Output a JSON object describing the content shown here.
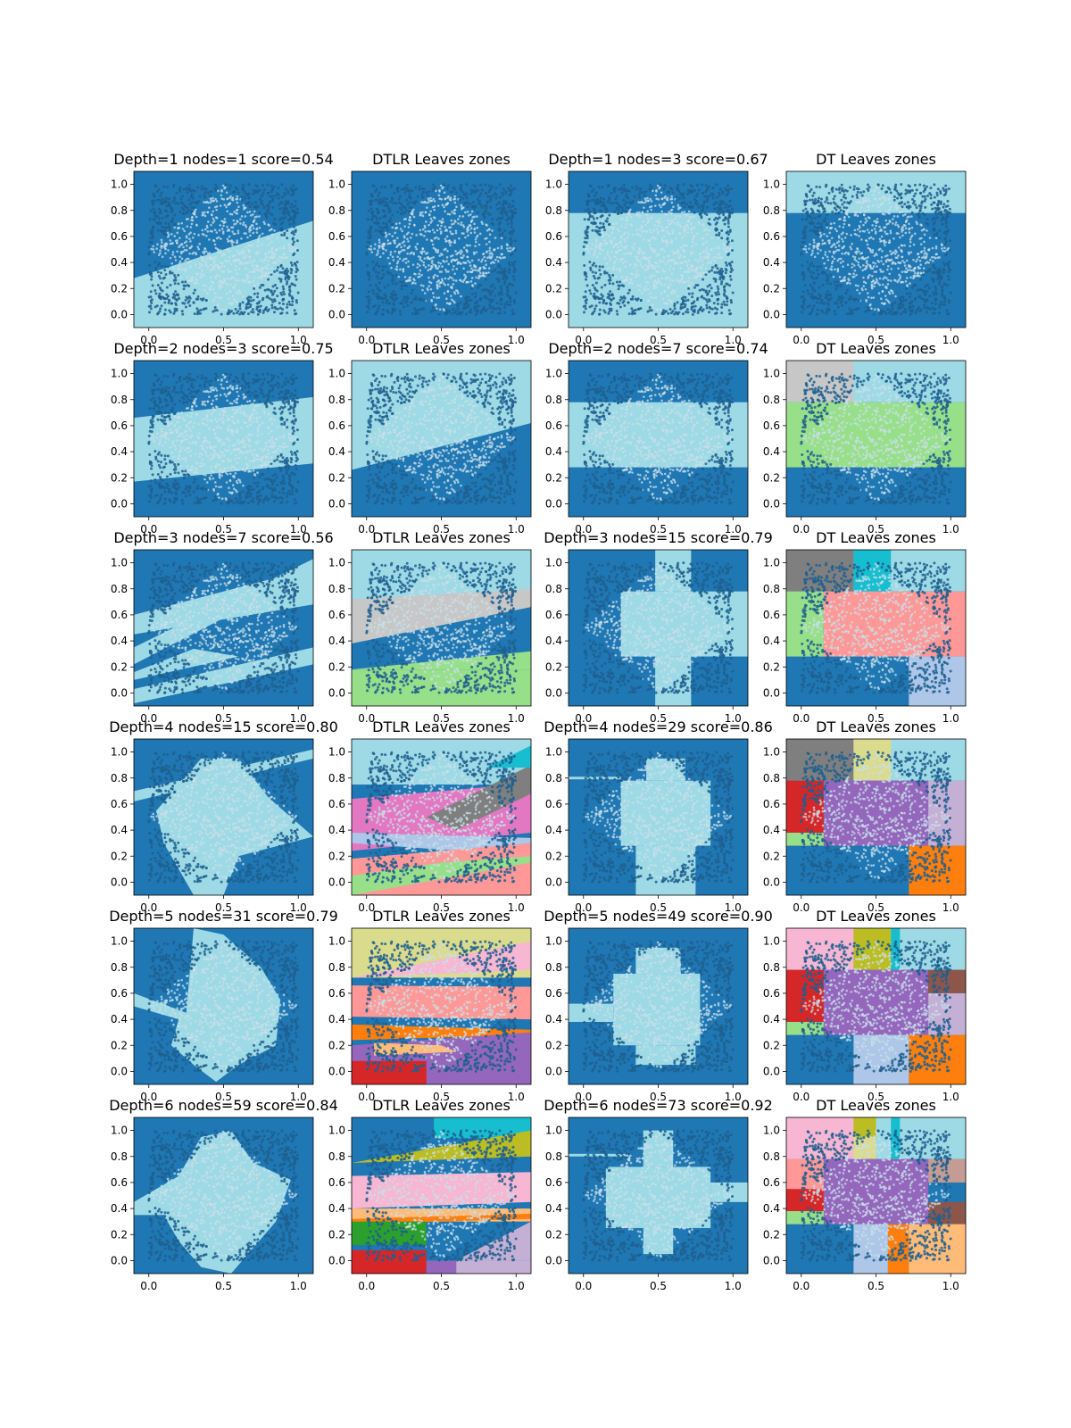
{
  "colors": {
    "dark_blue": "#1f77b4",
    "light_blue": "#9edae5",
    "points": "#1f5f8f",
    "points_light": "#c8dfe8",
    "tab20": [
      "#1f77b4",
      "#aec7e8",
      "#ff7f0e",
      "#ffbb78",
      "#2ca02c",
      "#98df8a",
      "#d62728",
      "#ff9896",
      "#9467bd",
      "#c5b0d5",
      "#8c564b",
      "#c49c94",
      "#e377c2",
      "#f7b6d2",
      "#7f7f7f",
      "#c7c7c7",
      "#bcbd22",
      "#dbdb8d",
      "#17becf",
      "#9edae5"
    ]
  },
  "chart_data": [
    {
      "row": 0,
      "col": 0,
      "type": "scatter",
      "title": "Depth=1 nodes=1 score=0.54",
      "x_ticks": [
        "0.0",
        "0.5",
        "1.0"
      ],
      "y_ticks": [
        "0.0",
        "0.2",
        "0.4",
        "0.6",
        "0.8",
        "1.0"
      ],
      "xlim": [
        -0.1,
        1.1
      ],
      "ylim": [
        -0.1,
        1.1
      ],
      "classes": [
        "light_blue",
        "dark_blue"
      ]
    },
    {
      "row": 0,
      "col": 1,
      "type": "scatter",
      "title": "DTLR Leaves zones",
      "x_ticks": [
        "0.0",
        "0.5",
        "1.0"
      ],
      "y_ticks": [
        "0.0",
        "0.2",
        "0.4",
        "0.6",
        "0.8",
        "1.0"
      ],
      "xlim": [
        -0.1,
        1.1
      ],
      "ylim": [
        -0.1,
        1.1
      ]
    },
    {
      "row": 0,
      "col": 2,
      "type": "scatter",
      "title": "Depth=1 nodes=3 score=0.67",
      "x_ticks": [
        "0.0",
        "0.5",
        "1.0"
      ],
      "y_ticks": [
        "0.0",
        "0.2",
        "0.4",
        "0.6",
        "0.8",
        "1.0"
      ],
      "xlim": [
        -0.1,
        1.1
      ],
      "ylim": [
        -0.1,
        1.1
      ]
    },
    {
      "row": 0,
      "col": 3,
      "type": "scatter",
      "title": "DT Leaves zones",
      "x_ticks": [
        "0.0",
        "0.5",
        "1.0"
      ],
      "y_ticks": [
        "0.0",
        "0.2",
        "0.4",
        "0.6",
        "0.8",
        "1.0"
      ],
      "xlim": [
        -0.1,
        1.1
      ],
      "ylim": [
        -0.1,
        1.1
      ]
    },
    {
      "row": 1,
      "col": 0,
      "type": "scatter",
      "title": "Depth=2 nodes=3 score=0.75",
      "x_ticks": [
        "0.0",
        "0.5",
        "1.0"
      ],
      "y_ticks": [
        "0.0",
        "0.2",
        "0.4",
        "0.6",
        "0.8",
        "1.0"
      ],
      "xlim": [
        -0.1,
        1.1
      ],
      "ylim": [
        -0.1,
        1.1
      ]
    },
    {
      "row": 1,
      "col": 1,
      "type": "scatter",
      "title": "DTLR Leaves zones",
      "x_ticks": [
        "0.0",
        "0.5",
        "1.0"
      ],
      "y_ticks": [
        "0.0",
        "0.2",
        "0.4",
        "0.6",
        "0.8",
        "1.0"
      ],
      "xlim": [
        -0.1,
        1.1
      ],
      "ylim": [
        -0.1,
        1.1
      ]
    },
    {
      "row": 1,
      "col": 2,
      "type": "scatter",
      "title": "Depth=2 nodes=7 score=0.74",
      "x_ticks": [
        "0.0",
        "0.5",
        "1.0"
      ],
      "y_ticks": [
        "0.0",
        "0.2",
        "0.4",
        "0.6",
        "0.8",
        "1.0"
      ],
      "xlim": [
        -0.1,
        1.1
      ],
      "ylim": [
        -0.1,
        1.1
      ]
    },
    {
      "row": 1,
      "col": 3,
      "type": "scatter",
      "title": "DT Leaves zones",
      "x_ticks": [
        "0.0",
        "0.5",
        "1.0"
      ],
      "y_ticks": [
        "0.0",
        "0.2",
        "0.4",
        "0.6",
        "0.8",
        "1.0"
      ],
      "xlim": [
        -0.1,
        1.1
      ],
      "ylim": [
        -0.1,
        1.1
      ]
    },
    {
      "row": 2,
      "col": 0,
      "type": "scatter",
      "title": "Depth=3 nodes=7 score=0.56",
      "x_ticks": [
        "0.0",
        "0.5",
        "1.0"
      ],
      "y_ticks": [
        "0.0",
        "0.2",
        "0.4",
        "0.6",
        "0.8",
        "1.0"
      ],
      "xlim": [
        -0.1,
        1.1
      ],
      "ylim": [
        -0.1,
        1.1
      ]
    },
    {
      "row": 2,
      "col": 1,
      "type": "scatter",
      "title": "DTLR Leaves zones",
      "x_ticks": [
        "0.0",
        "0.5",
        "1.0"
      ],
      "y_ticks": [
        "0.0",
        "0.2",
        "0.4",
        "0.6",
        "0.8",
        "1.0"
      ],
      "xlim": [
        -0.1,
        1.1
      ],
      "ylim": [
        -0.1,
        1.1
      ]
    },
    {
      "row": 2,
      "col": 2,
      "type": "scatter",
      "title": "Depth=3 nodes=15 score=0.79",
      "x_ticks": [
        "0.0",
        "0.5",
        "1.0"
      ],
      "y_ticks": [
        "0.0",
        "0.2",
        "0.4",
        "0.6",
        "0.8",
        "1.0"
      ],
      "xlim": [
        -0.1,
        1.1
      ],
      "ylim": [
        -0.1,
        1.1
      ]
    },
    {
      "row": 2,
      "col": 3,
      "type": "scatter",
      "title": "DT Leaves zones",
      "x_ticks": [
        "0.0",
        "0.5",
        "1.0"
      ],
      "y_ticks": [
        "0.0",
        "0.2",
        "0.4",
        "0.6",
        "0.8",
        "1.0"
      ],
      "xlim": [
        -0.1,
        1.1
      ],
      "ylim": [
        -0.1,
        1.1
      ]
    },
    {
      "row": 3,
      "col": 0,
      "type": "scatter",
      "title": "Depth=4 nodes=15 score=0.80",
      "x_ticks": [
        "0.0",
        "0.5",
        "1.0"
      ],
      "y_ticks": [
        "0.0",
        "0.2",
        "0.4",
        "0.6",
        "0.8",
        "1.0"
      ],
      "xlim": [
        -0.1,
        1.1
      ],
      "ylim": [
        -0.1,
        1.1
      ]
    },
    {
      "row": 3,
      "col": 1,
      "type": "scatter",
      "title": "DTLR Leaves zones",
      "x_ticks": [
        "0.0",
        "0.5",
        "1.0"
      ],
      "y_ticks": [
        "0.0",
        "0.2",
        "0.4",
        "0.6",
        "0.8",
        "1.0"
      ],
      "xlim": [
        -0.1,
        1.1
      ],
      "ylim": [
        -0.1,
        1.1
      ]
    },
    {
      "row": 3,
      "col": 2,
      "type": "scatter",
      "title": "Depth=4 nodes=29 score=0.86",
      "x_ticks": [
        "0.0",
        "0.5",
        "1.0"
      ],
      "y_ticks": [
        "0.0",
        "0.2",
        "0.4",
        "0.6",
        "0.8",
        "1.0"
      ],
      "xlim": [
        -0.1,
        1.1
      ],
      "ylim": [
        -0.1,
        1.1
      ]
    },
    {
      "row": 3,
      "col": 3,
      "type": "scatter",
      "title": "DT Leaves zones",
      "x_ticks": [
        "0.0",
        "0.5",
        "1.0"
      ],
      "y_ticks": [
        "0.0",
        "0.2",
        "0.4",
        "0.6",
        "0.8",
        "1.0"
      ],
      "xlim": [
        -0.1,
        1.1
      ],
      "ylim": [
        -0.1,
        1.1
      ]
    },
    {
      "row": 4,
      "col": 0,
      "type": "scatter",
      "title": "Depth=5 nodes=31 score=0.79",
      "x_ticks": [
        "0.0",
        "0.5",
        "1.0"
      ],
      "y_ticks": [
        "0.0",
        "0.2",
        "0.4",
        "0.6",
        "0.8",
        "1.0"
      ],
      "xlim": [
        -0.1,
        1.1
      ],
      "ylim": [
        -0.1,
        1.1
      ]
    },
    {
      "row": 4,
      "col": 1,
      "type": "scatter",
      "title": "DTLR Leaves zones",
      "x_ticks": [
        "0.0",
        "0.5",
        "1.0"
      ],
      "y_ticks": [
        "0.0",
        "0.2",
        "0.4",
        "0.6",
        "0.8",
        "1.0"
      ],
      "xlim": [
        -0.1,
        1.1
      ],
      "ylim": [
        -0.1,
        1.1
      ]
    },
    {
      "row": 4,
      "col": 2,
      "type": "scatter",
      "title": "Depth=5 nodes=49 score=0.90",
      "x_ticks": [
        "0.0",
        "0.5",
        "1.0"
      ],
      "y_ticks": [
        "0.0",
        "0.2",
        "0.4",
        "0.6",
        "0.8",
        "1.0"
      ],
      "xlim": [
        -0.1,
        1.1
      ],
      "ylim": [
        -0.1,
        1.1
      ]
    },
    {
      "row": 4,
      "col": 3,
      "type": "scatter",
      "title": "DT Leaves zones",
      "x_ticks": [
        "0.0",
        "0.5",
        "1.0"
      ],
      "y_ticks": [
        "0.0",
        "0.2",
        "0.4",
        "0.6",
        "0.8",
        "1.0"
      ],
      "xlim": [
        -0.1,
        1.1
      ],
      "ylim": [
        -0.1,
        1.1
      ]
    },
    {
      "row": 5,
      "col": 0,
      "type": "scatter",
      "title": "Depth=6 nodes=59 score=0.84",
      "x_ticks": [
        "0.0",
        "0.5",
        "1.0"
      ],
      "y_ticks": [
        "0.0",
        "0.2",
        "0.4",
        "0.6",
        "0.8",
        "1.0"
      ],
      "xlim": [
        -0.1,
        1.1
      ],
      "ylim": [
        -0.1,
        1.1
      ]
    },
    {
      "row": 5,
      "col": 1,
      "type": "scatter",
      "title": "DTLR Leaves zones",
      "x_ticks": [
        "0.0",
        "0.5",
        "1.0"
      ],
      "y_ticks": [
        "0.0",
        "0.2",
        "0.4",
        "0.6",
        "0.8",
        "1.0"
      ],
      "xlim": [
        -0.1,
        1.1
      ],
      "ylim": [
        -0.1,
        1.1
      ]
    },
    {
      "row": 5,
      "col": 2,
      "type": "scatter",
      "title": "Depth=6 nodes=73 score=0.92",
      "x_ticks": [
        "0.0",
        "0.5",
        "1.0"
      ],
      "y_ticks": [
        "0.0",
        "0.2",
        "0.4",
        "0.6",
        "0.8",
        "1.0"
      ],
      "xlim": [
        -0.1,
        1.1
      ],
      "ylim": [
        -0.1,
        1.1
      ]
    },
    {
      "row": 5,
      "col": 3,
      "type": "scatter",
      "title": "DT Leaves zones",
      "x_ticks": [
        "0.0",
        "0.5",
        "1.0"
      ],
      "y_ticks": [
        "0.0",
        "0.2",
        "0.4",
        "0.6",
        "0.8",
        "1.0"
      ],
      "xlim": [
        -0.1,
        1.1
      ],
      "ylim": [
        -0.1,
        1.1
      ]
    }
  ]
}
